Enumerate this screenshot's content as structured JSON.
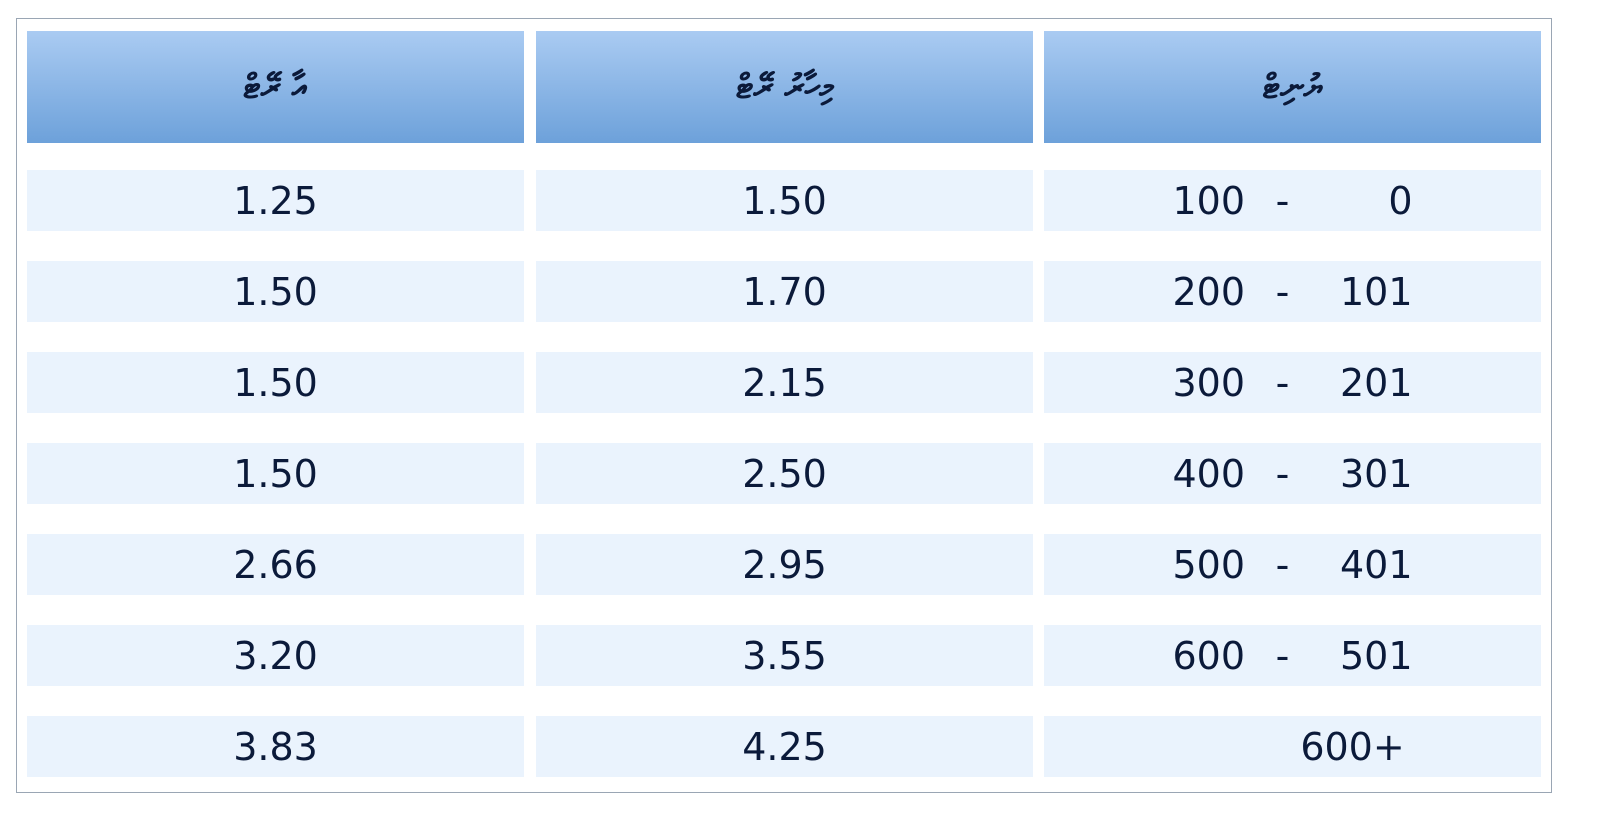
{
  "headers": {
    "new_rate": "އާ ރޭޓް",
    "current_rate": "މިހާރު ރޭޓް",
    "units": "ޔުނިޓް"
  },
  "rows": [
    {
      "new_rate": "1.25",
      "current_rate": "1.50",
      "units_to": "100",
      "separator": "-",
      "units_from": "0"
    },
    {
      "new_rate": "1.50",
      "current_rate": "1.70",
      "units_to": "200",
      "separator": "-",
      "units_from": "101"
    },
    {
      "new_rate": "1.50",
      "current_rate": "2.15",
      "units_to": "300",
      "separator": "-",
      "units_from": "201"
    },
    {
      "new_rate": "1.50",
      "current_rate": "2.50",
      "units_to": "400",
      "separator": "-",
      "units_from": "301"
    },
    {
      "new_rate": "2.66",
      "current_rate": "2.95",
      "units_to": "500",
      "separator": "-",
      "units_from": "401"
    },
    {
      "new_rate": "3.20",
      "current_rate": "3.55",
      "units_to": "600",
      "separator": "-",
      "units_from": "501"
    },
    {
      "new_rate": "3.83",
      "current_rate": "4.25",
      "units_label": "600+"
    }
  ]
}
